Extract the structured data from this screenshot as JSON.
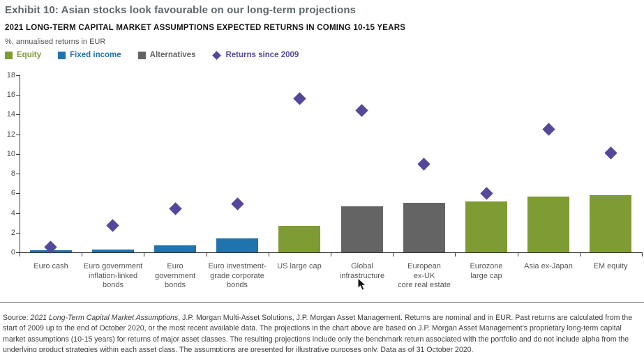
{
  "header": {
    "exhibit_title": "Exhibit 10: Asian stocks look favourable on our long-term projections",
    "subtitle": "2021 LONG-TERM CAPITAL MARKET ASSUMPTIONS EXPECTED RETURNS IN COMING 10-15 YEARS",
    "units_note": "%, annualised returns in EUR"
  },
  "palette": {
    "equity": "#7e9b34",
    "fixed_income": "#2173ae",
    "alternatives": "#646464",
    "returns_since_2009": "#54489b",
    "axis": "#333333",
    "text_gray": "#555555"
  },
  "legend": {
    "items": [
      {
        "label": "Equity",
        "marker": "square",
        "color": "#7e9b34"
      },
      {
        "label": "Fixed income",
        "marker": "square",
        "color": "#2173ae"
      },
      {
        "label": "Alternatives",
        "marker": "square",
        "color": "#646464"
      },
      {
        "label": "Returns since 2009",
        "marker": "diamond",
        "color": "#54489b"
      }
    ]
  },
  "chart_data": {
    "type": "bar",
    "title": "2021 LONG-TERM CAPITAL MARKET ASSUMPTIONS EXPECTED RETURNS IN COMING 10-15 YEARS",
    "xlabel": "",
    "ylabel": "%, annualised returns in EUR",
    "ylim": [
      0,
      18
    ],
    "ytick_step": 2,
    "yticks": [
      0,
      2,
      4,
      6,
      8,
      10,
      12,
      14,
      16,
      18
    ],
    "grid": false,
    "legend_position": "top-left",
    "categories": [
      "Euro cash",
      "Euro government\ninflation-linked\nbonds",
      "Euro\ngovernment\nbonds",
      "Euro investment-\ngrade corporate\nbonds",
      "US large cap",
      "Global\ninfrastructure",
      "European\nex-UK\ncore real estate",
      "Eurozone\nlarge cap",
      "Asia ex-Japan",
      "EM equity"
    ],
    "series": [
      {
        "name": "2021 expected return (bars)",
        "render": "bar",
        "values": [
          0.2,
          0.3,
          0.7,
          1.4,
          2.7,
          4.7,
          5.0,
          5.2,
          5.7,
          5.8
        ],
        "asset_class": [
          "Fixed income",
          "Fixed income",
          "Fixed income",
          "Fixed income",
          "Equity",
          "Alternatives",
          "Alternatives",
          "Equity",
          "Equity",
          "Equity"
        ],
        "group_colors": {
          "Equity": "#7e9b34",
          "Fixed income": "#2173ae",
          "Alternatives": "#646464"
        }
      },
      {
        "name": "Returns since 2009 (diamonds)",
        "render": "scatter-diamond",
        "values": [
          0.5,
          2.7,
          4.4,
          4.9,
          15.6,
          14.4,
          9.0,
          6.0,
          12.5,
          10.1
        ],
        "color": "#54489b"
      }
    ]
  },
  "footer": {
    "segments": [
      {
        "text": "Source: ",
        "italic": false
      },
      {
        "text": "2021 Long-Term Capital Market Assumptions",
        "italic": true
      },
      {
        "text": ", J.P. Morgan Multi-Asset Solutions, J.P. Morgan Asset Management. Returns are nominal and in EUR. Past returns are calculated from the start of 2009 up to the end of October 2020, or the most recent available data. The projections in the chart above are based on J.P. Morgan Asset Management’s proprietary long-term capital market assumptions (10-15 years) for returns of major asset classes. The resulting projections include only the benchmark return associated with the portfolio and do not include alpha from the underlying product strategies within each asset class. The assumptions are presented for illustrative purposes only. Data as of 31 October 2020.",
        "italic": false
      }
    ]
  }
}
